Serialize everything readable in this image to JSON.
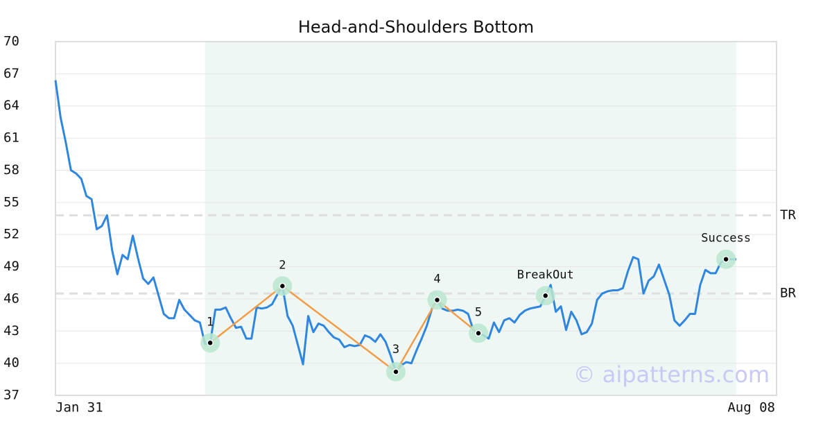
{
  "chart_data": {
    "type": "line",
    "title": "Head-and-Shoulders Bottom",
    "categories": [
      "Jan 31",
      null,
      null,
      null,
      null,
      null,
      null,
      null,
      null,
      null,
      null,
      null,
      null,
      null,
      null,
      null,
      null,
      null,
      null,
      null,
      null,
      null,
      null,
      null,
      null,
      null,
      null,
      null,
      null,
      null,
      null,
      null,
      null,
      null,
      null,
      null,
      null,
      null,
      null,
      null,
      null,
      null,
      null,
      null,
      null,
      null,
      null,
      null,
      null,
      null,
      null,
      null,
      null,
      null,
      null,
      null,
      null,
      null,
      null,
      null,
      null,
      null,
      null,
      null,
      null,
      null,
      null,
      null,
      null,
      null,
      null,
      null,
      null,
      null,
      null,
      null,
      null,
      null,
      null,
      null,
      null,
      null,
      null,
      null,
      null,
      null,
      null,
      null,
      null,
      null,
      null,
      null,
      null,
      null,
      null,
      null,
      null,
      null,
      null,
      null,
      null,
      null,
      null,
      null,
      null,
      null,
      null,
      null,
      null,
      null,
      null,
      null,
      null,
      null,
      null,
      null,
      null,
      null,
      null,
      null,
      null,
      null,
      null,
      null,
      null,
      null,
      null,
      null,
      null,
      null,
      null,
      null,
      "Aug 08"
    ],
    "series": [
      {
        "color": "#2e86de",
        "values": [
          66.4,
          62.9,
          60.6,
          58.0,
          57.7,
          57.2,
          55.6,
          55.3,
          52.5,
          52.8,
          53.8,
          50.5,
          48.3,
          50.1,
          49.7,
          51.9,
          49.8,
          47.9,
          47.4,
          48.0,
          46.3,
          44.6,
          44.2,
          44.2,
          45.9,
          45.0,
          44.5,
          44.0,
          43.8,
          41.8,
          41.9,
          45.0,
          45.0,
          45.2,
          44.2,
          43.3,
          43.4,
          42.3,
          42.3,
          45.2,
          45.1,
          45.2,
          45.5,
          46.4,
          47.2,
          44.4,
          43.5,
          41.7,
          39.9,
          44.4,
          42.9,
          43.7,
          43.5,
          42.9,
          42.4,
          42.2,
          41.5,
          41.7,
          41.6,
          41.7,
          42.6,
          42.4,
          42.0,
          42.7,
          42.0,
          40.7,
          39.2,
          39.8,
          40.1,
          40.0,
          41.2,
          42.3,
          43.5,
          45.1,
          45.9,
          45.1,
          44.9,
          44.9,
          45.0,
          44.9,
          44.6,
          43.1,
          42.8,
          42.6,
          42.3,
          43.8,
          42.9,
          44.0,
          44.2,
          43.8,
          44.5,
          44.9,
          45.1,
          45.2,
          45.3,
          46.3,
          47.3,
          44.8,
          45.3,
          43.1,
          44.8,
          44.0,
          42.7,
          42.9,
          43.7,
          45.9,
          46.5,
          46.7,
          46.8,
          46.8,
          47.0,
          48.6,
          49.9,
          49.7,
          46.5,
          47.7,
          48.1,
          49.2,
          47.8,
          46.4,
          44.0,
          43.5,
          44.0,
          44.6,
          44.6,
          47.3,
          48.7,
          48.4,
          48.4,
          49.4,
          49.7,
          49.7,
          49.7
        ]
      }
    ],
    "ylim": [
      37,
      70
    ],
    "yticks": [
      37,
      40,
      43,
      46,
      49,
      52,
      55,
      58,
      61,
      64,
      67,
      70
    ],
    "grid": true,
    "shade": [
      29,
      132
    ],
    "shade_color": "#eef7f3",
    "pattern_color": "#f39c47",
    "marker_color": "#b8e6cf",
    "pattern": [
      {
        "label": "1",
        "x": 30,
        "value": 41.9
      },
      {
        "label": "2",
        "x": 44,
        "value": 47.2
      },
      {
        "label": "3",
        "x": 66,
        "value": 39.2
      },
      {
        "label": "4",
        "x": 74,
        "value": 45.9
      },
      {
        "label": "5",
        "x": 82,
        "value": 42.8
      }
    ],
    "annotations": [
      {
        "label": "BreakOut",
        "x": 95,
        "value": 46.3
      },
      {
        "label": "Success",
        "x": 130,
        "value": 49.7
      }
    ],
    "hlines": [
      {
        "label": "TR",
        "value": 53.8
      },
      {
        "label": "BR",
        "value": 46.5
      }
    ],
    "watermark": "© aipatterns.com"
  }
}
